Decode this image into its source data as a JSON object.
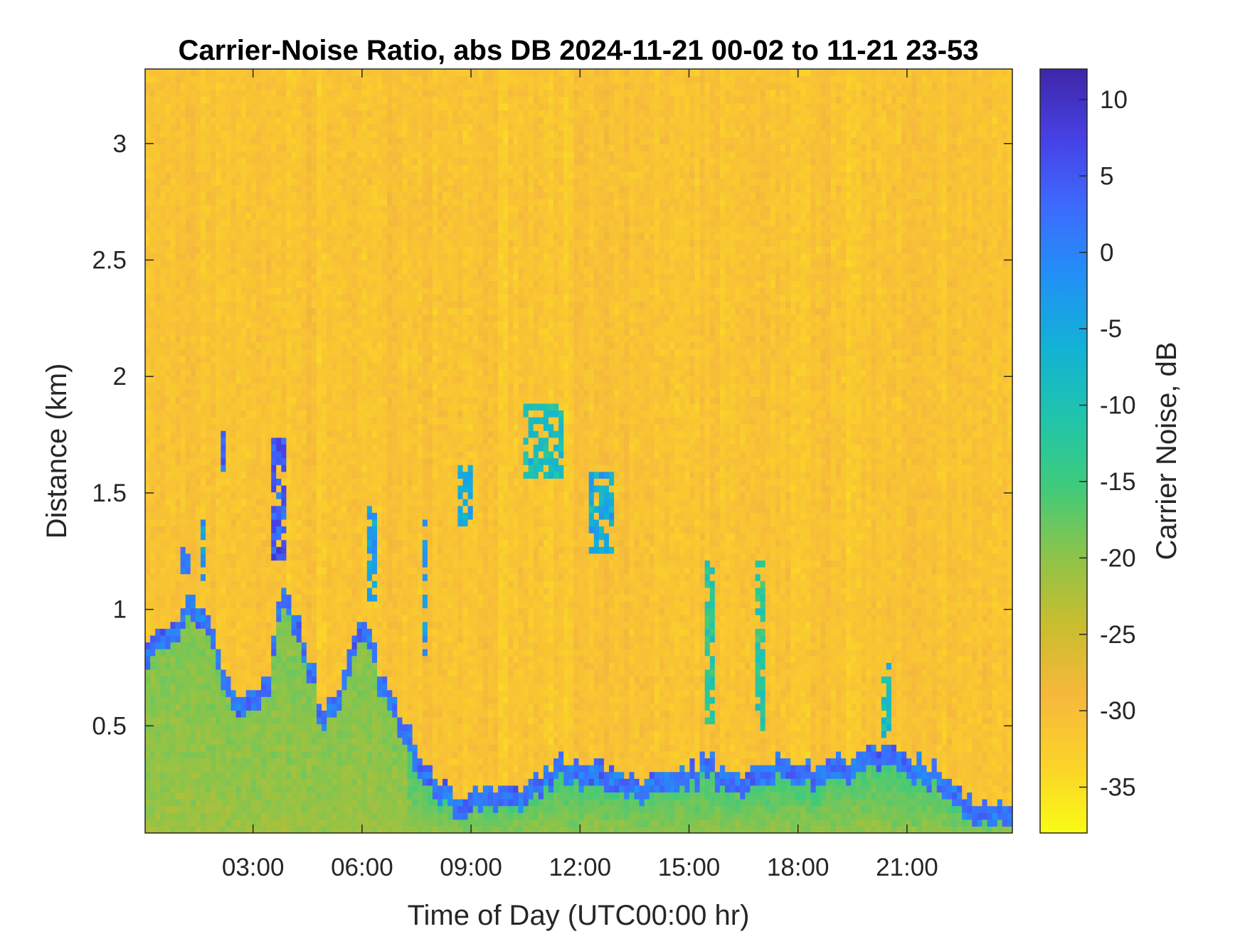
{
  "chart_data": {
    "type": "heatmap",
    "title": "Carrier-Noise Ratio, abs DB 2024-11-21 00-02 to 11-21 23-53",
    "xlabel": "Time of Day (UTC00:00 hr)",
    "ylabel": "Distance (km)",
    "colorbar_label": "Carrier Noise, dB",
    "xlim_hours": [
      0.03,
      23.9
    ],
    "ylim_km": [
      0.04,
      3.32
    ],
    "clim_db": [
      -38,
      12
    ],
    "x_ticks": [
      {
        "value": 3,
        "label": "03:00"
      },
      {
        "value": 6,
        "label": "06:00"
      },
      {
        "value": 9,
        "label": "09:00"
      },
      {
        "value": 12,
        "label": "12:00"
      },
      {
        "value": 15,
        "label": "15:00"
      },
      {
        "value": 18,
        "label": "18:00"
      },
      {
        "value": 21,
        "label": "21:00"
      }
    ],
    "y_ticks": [
      {
        "value": 0.5,
        "label": "0.5"
      },
      {
        "value": 1,
        "label": "1"
      },
      {
        "value": 1.5,
        "label": "1.5"
      },
      {
        "value": 2,
        "label": "2"
      },
      {
        "value": 2.5,
        "label": "2.5"
      },
      {
        "value": 3,
        "label": "3"
      }
    ],
    "colorbar_ticks": [
      {
        "value": 10,
        "label": "10"
      },
      {
        "value": 5,
        "label": "5"
      },
      {
        "value": 0,
        "label": "0"
      },
      {
        "value": -5,
        "label": "-5"
      },
      {
        "value": -10,
        "label": "-10"
      },
      {
        "value": -15,
        "label": "-15"
      },
      {
        "value": -20,
        "label": "-20"
      },
      {
        "value": -25,
        "label": "-25"
      },
      {
        "value": -30,
        "label": "-30"
      },
      {
        "value": -35,
        "label": "-35"
      }
    ],
    "colormap": [
      "#3e26a8",
      "#4741e5",
      "#3d6bfe",
      "#2191f5",
      "#13b1d6",
      "#20c4ad",
      "#3ecb7c",
      "#8cc44a",
      "#c9bd2e",
      "#f6b83c",
      "#fbd22a",
      "#f9fb15"
    ],
    "background_db": -31,
    "features": {
      "boundary_layer_top_km": [
        [
          0.1,
          0.88
        ],
        [
          0.7,
          0.92
        ],
        [
          1.2,
          1.05
        ],
        [
          1.8,
          0.98
        ],
        [
          2.2,
          0.72
        ],
        [
          2.8,
          0.62
        ],
        [
          3.4,
          0.72
        ],
        [
          3.8,
          1.08
        ],
        [
          4.3,
          0.92
        ],
        [
          4.9,
          0.58
        ],
        [
          5.4,
          0.68
        ],
        [
          6.0,
          1.0
        ],
        [
          6.5,
          0.76
        ],
        [
          7.0,
          0.58
        ],
        [
          7.5,
          0.4
        ],
        [
          8.0,
          0.28
        ],
        [
          8.5,
          0.2
        ],
        [
          9.5,
          0.22
        ],
        [
          10.5,
          0.25
        ],
        [
          11.5,
          0.35
        ],
        [
          12.5,
          0.32
        ],
        [
          13.5,
          0.28
        ],
        [
          14.5,
          0.32
        ],
        [
          15.5,
          0.36
        ],
        [
          16.5,
          0.28
        ],
        [
          17.5,
          0.38
        ],
        [
          18.5,
          0.32
        ],
        [
          19.5,
          0.38
        ],
        [
          20.5,
          0.4
        ],
        [
          21.5,
          0.34
        ],
        [
          22.5,
          0.22
        ],
        [
          23.5,
          0.16
        ],
        [
          23.9,
          0.14
        ]
      ],
      "near_surface_db": -19,
      "aloft_plumes": [
        {
          "x_hours": [
            1.0,
            1.3
          ],
          "y_km": [
            1.15,
            1.28
          ],
          "db": 0
        },
        {
          "x_hours": [
            1.5,
            1.7
          ],
          "y_km": [
            1.1,
            1.38
          ],
          "db": -3
        },
        {
          "x_hours": [
            2.1,
            2.3
          ],
          "y_km": [
            1.6,
            1.78
          ],
          "db": 2
        },
        {
          "x_hours": [
            3.5,
            3.9
          ],
          "y_km": [
            1.2,
            1.75
          ],
          "db": 5
        },
        {
          "x_hours": [
            6.1,
            6.4
          ],
          "y_km": [
            1.05,
            1.45
          ],
          "db": -3
        },
        {
          "x_hours": [
            7.6,
            7.8
          ],
          "y_km": [
            0.8,
            1.4
          ],
          "db": -3
        },
        {
          "x_hours": [
            8.6,
            9.0
          ],
          "y_km": [
            1.35,
            1.62
          ],
          "db": -5
        },
        {
          "x_hours": [
            10.5,
            11.6
          ],
          "y_km": [
            1.55,
            1.88
          ],
          "db": -9
        },
        {
          "x_hours": [
            12.2,
            12.9
          ],
          "y_km": [
            1.25,
            1.6
          ],
          "db": -6
        },
        {
          "x_hours": [
            15.5,
            15.7
          ],
          "y_km": [
            0.5,
            1.2
          ],
          "db": -13
        },
        {
          "x_hours": [
            16.8,
            17.1
          ],
          "y_km": [
            0.45,
            1.2
          ],
          "db": -12
        },
        {
          "x_hours": [
            20.3,
            20.5
          ],
          "y_km": [
            0.45,
            0.8
          ],
          "db": -9
        }
      ]
    }
  }
}
